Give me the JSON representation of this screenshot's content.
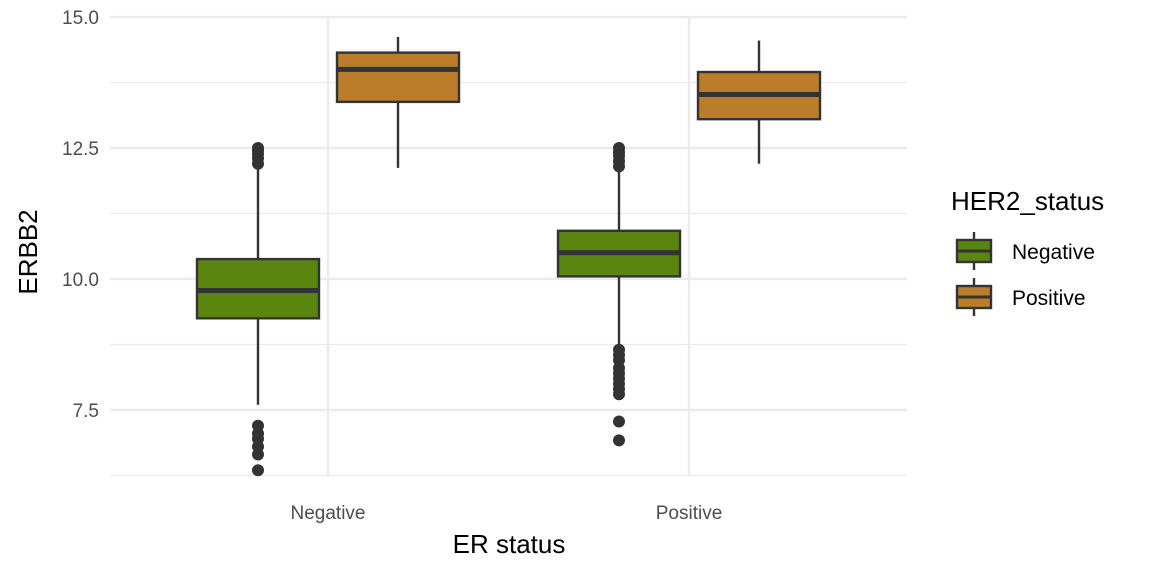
{
  "chart_data": {
    "type": "boxplot",
    "title": "",
    "xlabel": "ER status",
    "ylabel": "ERBB2",
    "ylim": [
      6.2,
      15.0
    ],
    "y_ticks": [
      "7.5",
      "10.0",
      "12.5",
      "15.0"
    ],
    "categories": [
      "Negative",
      "Positive"
    ],
    "grid": true,
    "legend": {
      "title": "HER2_status",
      "placement": "right",
      "entries": [
        "Negative",
        "Positive"
      ]
    },
    "series": [
      {
        "name": "Negative",
        "color": "#5a850f",
        "boxes": [
          {
            "category": "Negative",
            "whisker_low": 7.6,
            "q1": 9.25,
            "median": 9.78,
            "q3": 10.38,
            "whisker_high": 12.1,
            "outliers": [
              6.35,
              6.65,
              6.8,
              6.95,
              7.05,
              7.2,
              12.2,
              12.3,
              12.38,
              12.45,
              12.5
            ]
          },
          {
            "category": "Positive",
            "whisker_low": 8.75,
            "q1": 10.05,
            "median": 10.5,
            "q3": 10.92,
            "whisker_high": 12.1,
            "outliers": [
              6.92,
              7.28,
              7.8,
              7.9,
              8.0,
              8.1,
              8.2,
              8.3,
              8.45,
              8.55,
              8.65,
              12.15,
              12.25,
              12.35,
              12.42,
              12.5
            ]
          }
        ]
      },
      {
        "name": "Positive",
        "color": "#bb7d2a",
        "boxes": [
          {
            "category": "Negative",
            "whisker_low": 12.12,
            "q1": 13.38,
            "median": 14.0,
            "q3": 14.32,
            "whisker_high": 14.62,
            "outliers": []
          },
          {
            "category": "Positive",
            "whisker_low": 12.2,
            "q1": 13.05,
            "median": 13.52,
            "q3": 13.95,
            "whisker_high": 14.55,
            "outliers": []
          }
        ]
      }
    ]
  }
}
